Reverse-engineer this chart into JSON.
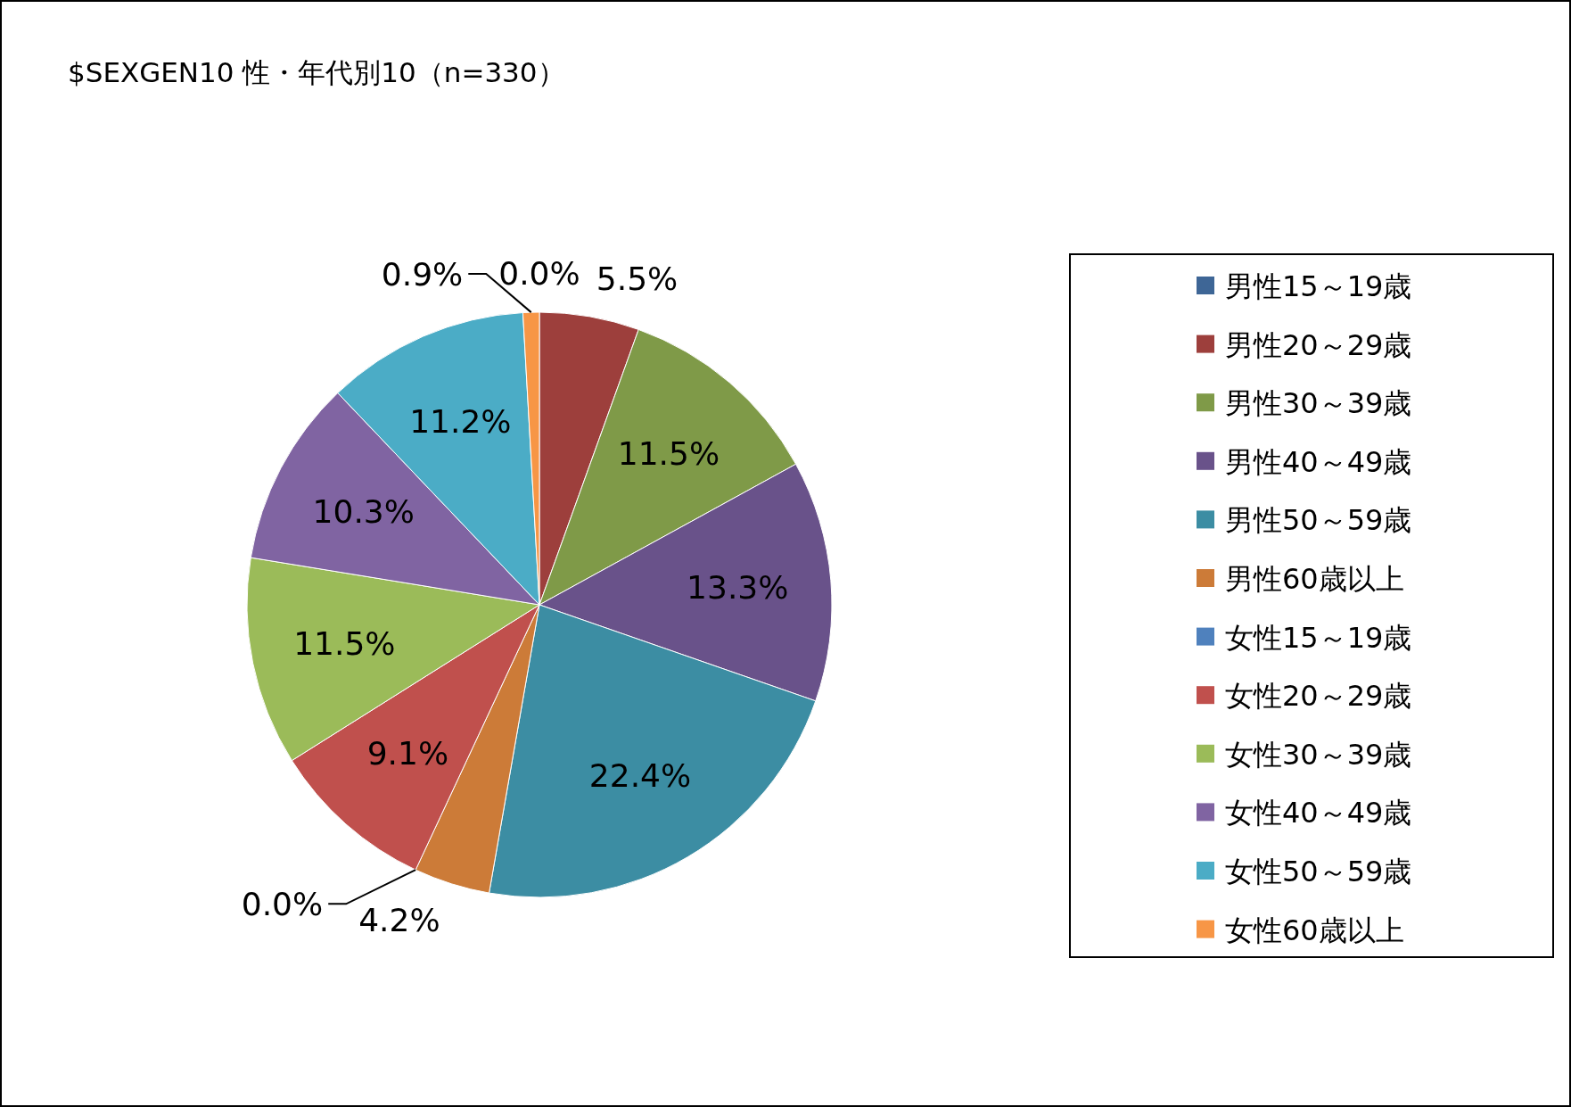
{
  "chart_data": {
    "type": "pie",
    "title": "$SEXGEN10 性・年代別10（n=330）",
    "categories": [
      "男性15～19歳",
      "男性20～29歳",
      "男性30～39歳",
      "男性40～49歳",
      "男性50～59歳",
      "男性60歳以上",
      "女性15～19歳",
      "女性20～29歳",
      "女性30～39歳",
      "女性40～49歳",
      "女性50～59歳",
      "女性60歳以上"
    ],
    "values": [
      0.0,
      5.5,
      11.5,
      13.3,
      22.4,
      4.2,
      0.0,
      9.1,
      11.5,
      10.3,
      11.2,
      0.9
    ],
    "value_labels": [
      "0.0%",
      "5.5%",
      "11.5%",
      "13.3%",
      "22.4%",
      "4.2%",
      "0.0%",
      "9.1%",
      "11.5%",
      "10.3%",
      "11.2%",
      "0.9%"
    ],
    "colors": [
      "#3e6696",
      "#9d3f3c",
      "#7f9a48",
      "#69528a",
      "#3c8da3",
      "#cc7b38",
      "#4f81bd",
      "#c0504d",
      "#9bbb59",
      "#8064a2",
      "#4bacc6",
      "#f79646"
    ],
    "legend": "right"
  }
}
